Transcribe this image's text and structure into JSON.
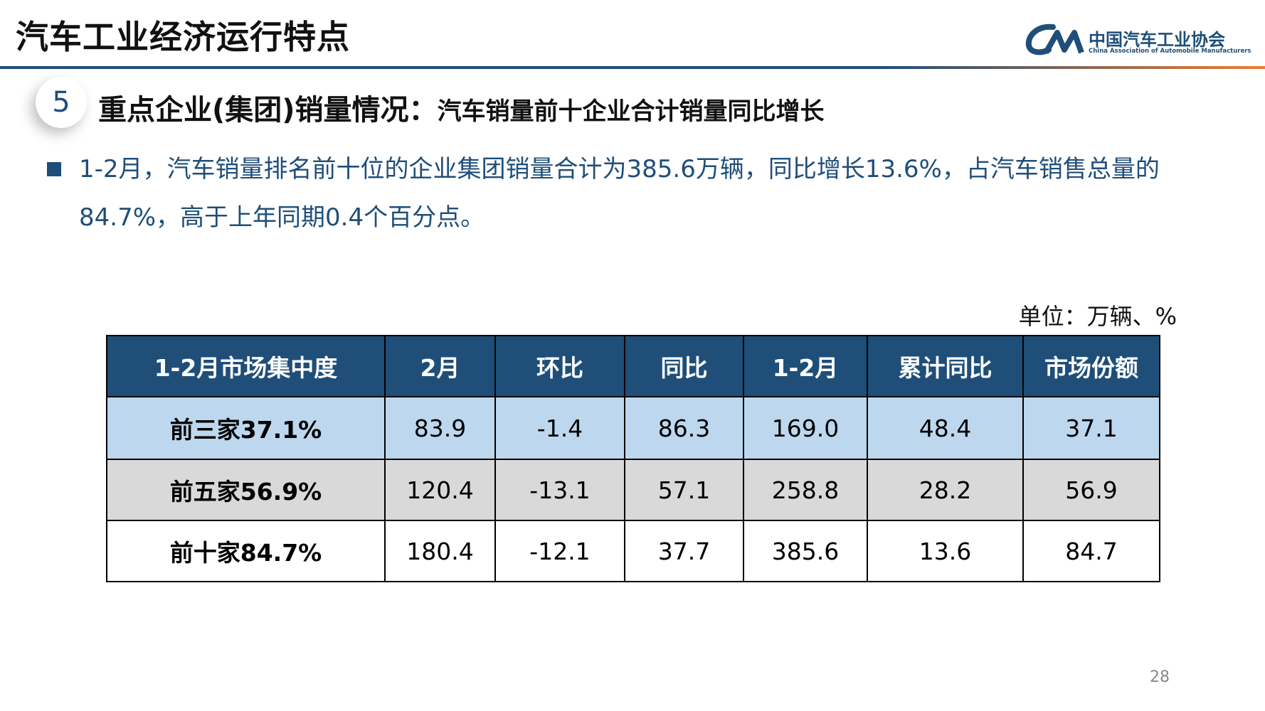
{
  "header": {
    "title": "汽车工业经济运行特点",
    "logo_cn": "中国汽车工业协会",
    "logo_en": "China Association of Automobile Manufacturers"
  },
  "section": {
    "number": "5",
    "title": "重点企业(集团)销量情况：",
    "subtitle": "汽车销量前十企业合计销量同比增长"
  },
  "bullet": "1-2月，汽车销量排名前十位的企业集团销量合计为385.6万辆，同比增长13.6%，占汽车销售总量的84.7%，高于上年同期0.4个百分点。",
  "unit": "单位：万辆、%",
  "table": {
    "headers": [
      "1-2月市场集中度",
      "2月",
      "环比",
      "同比",
      "1-2月",
      "累计同比",
      "市场份额"
    ],
    "rows": [
      [
        "前三家37.1%",
        "83.9",
        "-1.4",
        "86.3",
        "169.0",
        "48.4",
        "37.1"
      ],
      [
        "前五家56.9%",
        "120.4",
        "-13.1",
        "57.1",
        "258.8",
        "28.2",
        "56.9"
      ],
      [
        "前十家84.7%",
        "180.4",
        "-12.1",
        "37.7",
        "385.6",
        "13.6",
        "84.7"
      ]
    ]
  },
  "page_number": "28"
}
